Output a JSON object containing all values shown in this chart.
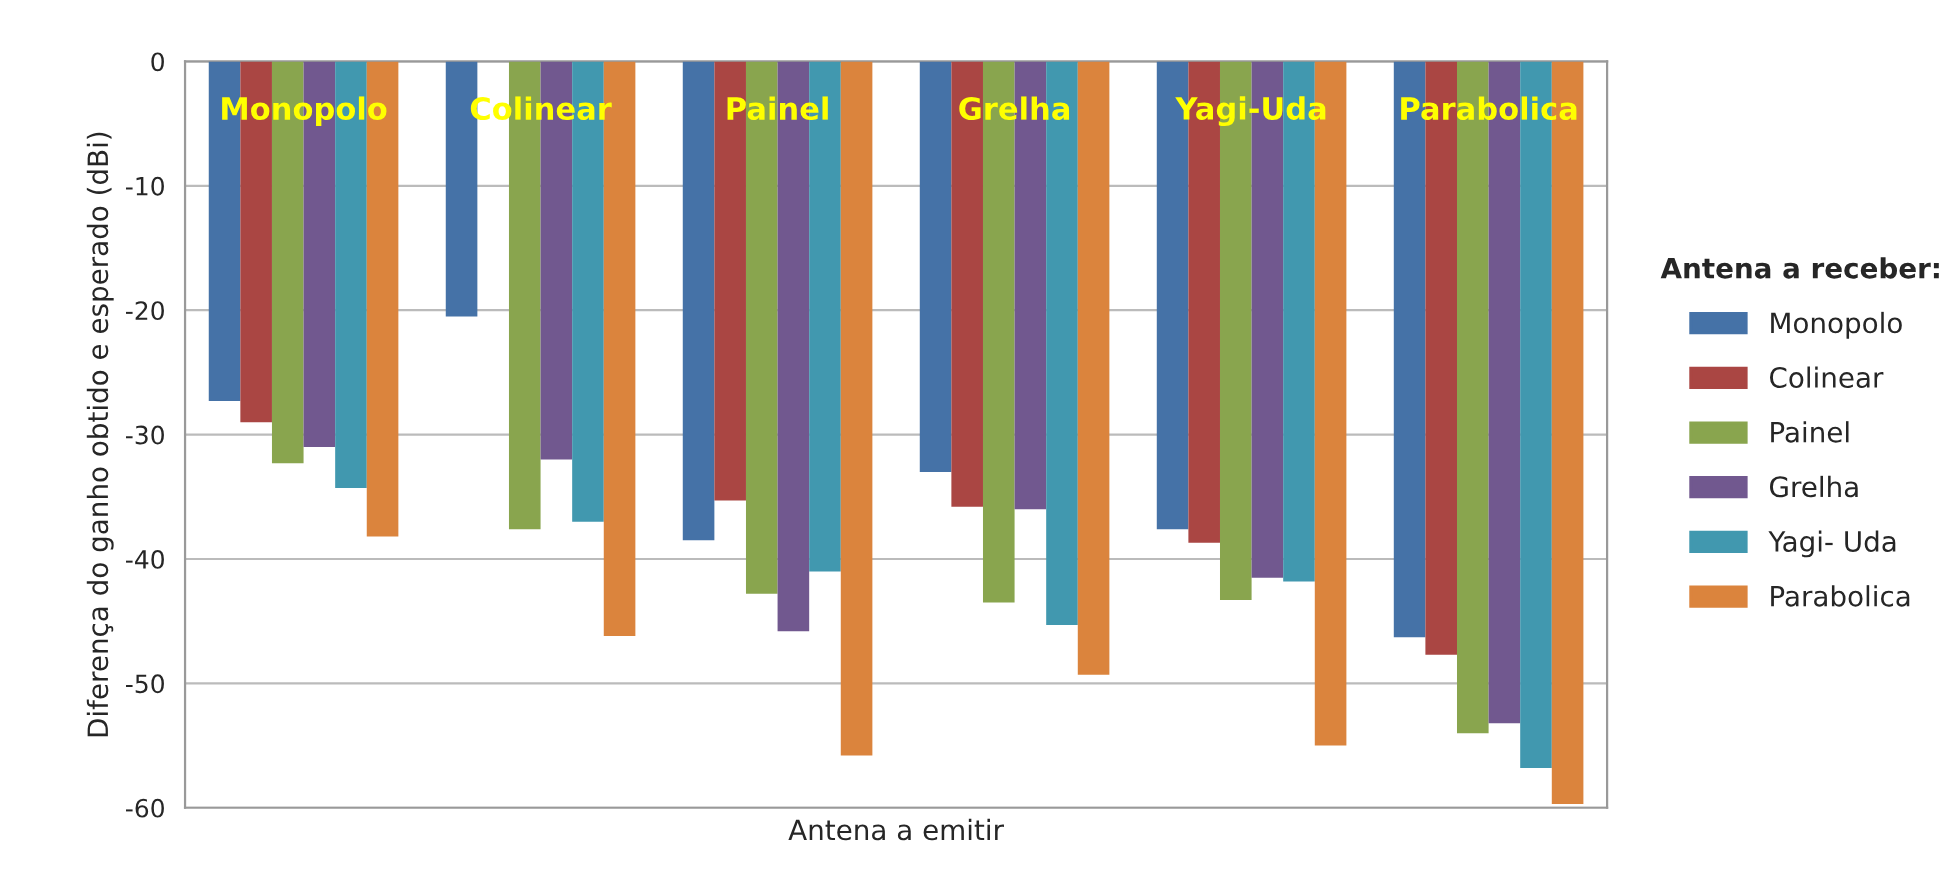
{
  "chart_data": {
    "type": "bar",
    "xlabel": "Antena a emitir",
    "ylabel": "Diferença do ganho obtido e esperado (dBi)",
    "legend_title": "Antena a receber:",
    "categories": [
      "Monopolo",
      "Colinear",
      "Painel",
      "Grelha",
      "Yagi-Uda",
      "Parabolica"
    ],
    "series": [
      {
        "name": "Monopolo",
        "color": "#4572a7",
        "values": [
          -27.3,
          -20.5,
          -38.5,
          -33,
          -37.6,
          -46.3
        ]
      },
      {
        "name": "Colinear",
        "color": "#aa4643",
        "values": [
          -29,
          null,
          -35.3,
          -35.8,
          -38.7,
          -47.7
        ]
      },
      {
        "name": "Painel",
        "color": "#89a54e",
        "values": [
          -32.3,
          -37.6,
          -42.8,
          -43.5,
          -43.3,
          -54
        ]
      },
      {
        "name": "Grelha",
        "color": "#71588f",
        "values": [
          -31,
          -32,
          -45.8,
          -36,
          -41.5,
          -53.2
        ]
      },
      {
        "name": "Yagi- Uda",
        "color": "#4198af",
        "values": [
          -34.3,
          -37,
          -41,
          -45.3,
          -41.8,
          -56.8
        ]
      },
      {
        "name": "Parabolica",
        "color": "#db843d",
        "values": [
          -38.2,
          -46.2,
          -55.8,
          -49.3,
          -55,
          -59.7
        ]
      }
    ],
    "ylim": [
      -60,
      0
    ],
    "yticks": [
      -60,
      -50,
      -40,
      -30,
      -20,
      -10,
      0
    ],
    "grid": "y",
    "legend": "right",
    "tick_labels": "y"
  }
}
